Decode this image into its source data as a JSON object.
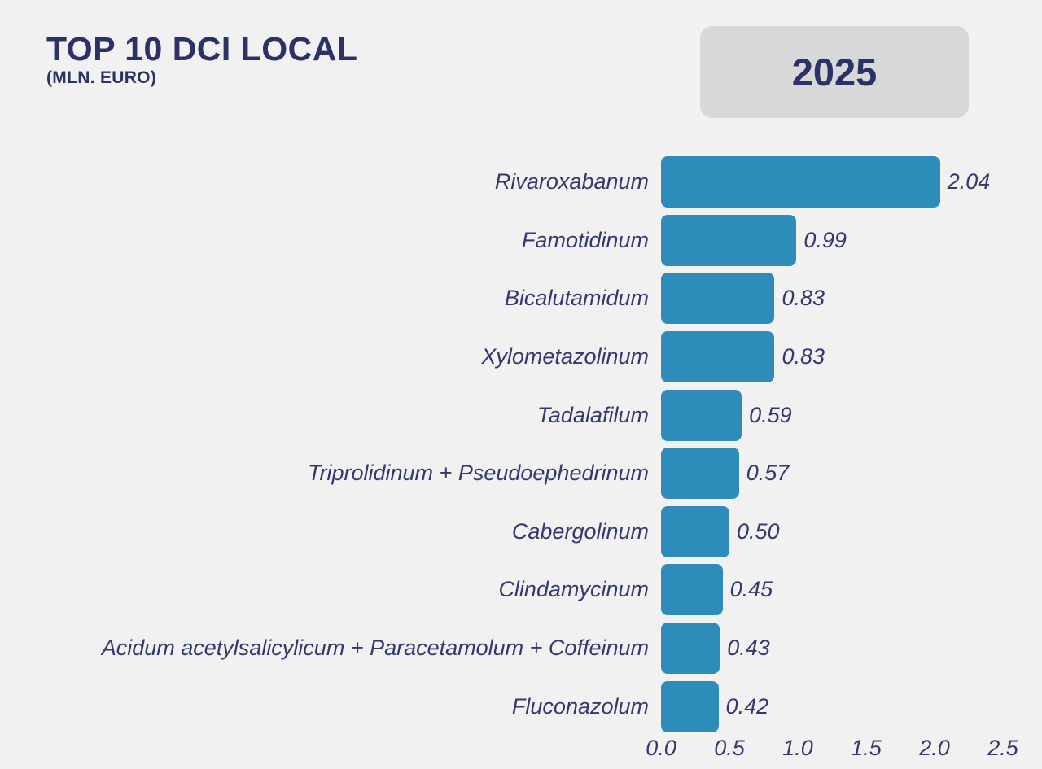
{
  "page": {
    "background": "#f1f1f2"
  },
  "header": {
    "title": "TOP 10 DCI LOCAL",
    "subtitle": "(MLN. EURO)",
    "year_badge": "2025"
  },
  "colors": {
    "bar": "#2d8cba",
    "text": "#33396c",
    "badge_bg": "#d8d8d8",
    "background": "#f1f1f2"
  },
  "chart_data": {
    "type": "bar",
    "orientation": "horizontal",
    "title": "TOP 10 DCI LOCAL (MLN. EURO)",
    "unit": "MLN. EURO",
    "year": "2025",
    "categories": [
      "Rivaroxabanum",
      "Famotidinum",
      "Bicalutamidum",
      "Xylometazolinum",
      "Tadalafilum",
      "Triprolidinum + Pseudoephedrinum",
      "Cabergolinum",
      "Clindamycinum",
      "Acidum acetylsalicylicum + Paracetamolum + Coffeinum",
      "Fluconazolum"
    ],
    "values": [
      2.04,
      0.99,
      0.83,
      0.83,
      0.59,
      0.57,
      0.5,
      0.45,
      0.43,
      0.42
    ],
    "value_labels": [
      "2.04",
      "0.99",
      "0.83",
      "0.83",
      "0.59",
      "0.57",
      "0.50",
      "0.45",
      "0.43",
      "0.42"
    ],
    "xlim": [
      0,
      2.5
    ],
    "x_ticks": [
      "0.0",
      "0.5",
      "1.0",
      "1.5",
      "2.0",
      "2.5"
    ],
    "grid": false,
    "legend": false
  }
}
